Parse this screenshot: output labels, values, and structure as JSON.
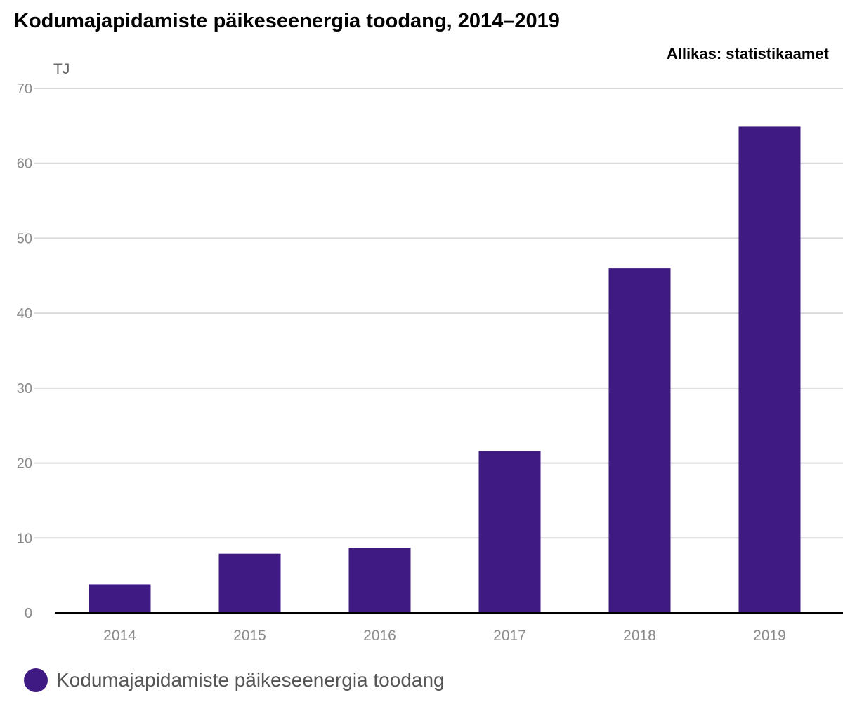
{
  "header": {
    "title": "Kodumajapidamiste päikeseenergia toodang, 2014–2019",
    "source": "Allikas: statistikaamet"
  },
  "colors": {
    "bar": "#3f1a82",
    "grid": "#d9d9d9",
    "axis": "#000000"
  },
  "chart_data": {
    "type": "bar",
    "title": "Kodumajapidamiste päikeseenergia toodang, 2014–2019",
    "ylabel": "TJ",
    "xlabel": "",
    "categories": [
      "2014",
      "2015",
      "2016",
      "2017",
      "2018",
      "2019"
    ],
    "series": [
      {
        "name": "Kodumajapidamiste päikeseenergia toodang",
        "values": [
          3.8,
          7.9,
          8.7,
          21.6,
          46.0,
          64.9
        ]
      }
    ],
    "ylim": [
      0,
      70
    ],
    "yticks": [
      0,
      10,
      20,
      30,
      40,
      50,
      60,
      70
    ],
    "grid": true,
    "legend": "bottom-left"
  }
}
